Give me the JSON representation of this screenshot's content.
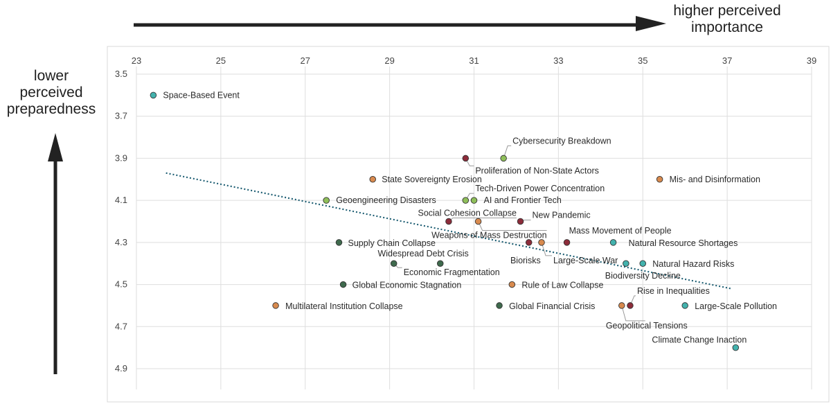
{
  "chart_data": {
    "type": "scatter",
    "title": "",
    "x_annotation": [
      "higher perceived",
      "importance"
    ],
    "y_annotation": [
      "lower",
      "perceived",
      "preparedness"
    ],
    "xlim": [
      23,
      39
    ],
    "ylim": [
      3.5,
      4.9
    ],
    "y_inverted": true,
    "x_ticks": [
      23,
      25,
      27,
      29,
      31,
      33,
      35,
      37,
      39
    ],
    "y_ticks": [
      3.5,
      3.7,
      3.9,
      4.1,
      4.3,
      4.5,
      4.7,
      4.9
    ],
    "grid": true,
    "trendline": {
      "style": "dotted",
      "x": [
        23.7,
        37.1
      ],
      "y": [
        3.97,
        4.52
      ]
    },
    "colors": {
      "teal": "#43b2ad",
      "lightgreen": "#8fbf5a",
      "darkgreen": "#3f6a4d",
      "orange": "#d88a4e",
      "maroon": "#8c2c3a",
      "trend": "#1f5f74"
    },
    "points": [
      {
        "label": "Space-Based Event",
        "x": 23.4,
        "y": 3.6,
        "color": "teal"
      },
      {
        "label": "Cybersecurity Breakdown",
        "x": 31.7,
        "y": 3.9,
        "color": "lightgreen"
      },
      {
        "label": "Proliferation of Non-State Actors",
        "x": 30.8,
        "y": 3.9,
        "color": "maroon"
      },
      {
        "label": "State Sovereignty Erosion",
        "x": 28.6,
        "y": 4.0,
        "color": "orange"
      },
      {
        "label": "Mis- and Disinformation",
        "x": 35.4,
        "y": 4.0,
        "color": "orange"
      },
      {
        "label": "Geoengineering Disasters",
        "x": 27.5,
        "y": 4.1,
        "color": "lightgreen"
      },
      {
        "label": "Tech-Driven Power Concentration",
        "x": 30.8,
        "y": 4.1,
        "color": "lightgreen"
      },
      {
        "label": "AI and Frontier Tech",
        "x": 31.0,
        "y": 4.1,
        "color": "lightgreen"
      },
      {
        "label": "Social Cohesion Collapse",
        "x": 30.4,
        "y": 4.2,
        "color": "maroon"
      },
      {
        "label": "Weapons of Mass Destruction",
        "x": 31.1,
        "y": 4.2,
        "color": "orange"
      },
      {
        "label": "New Pandemic",
        "x": 32.1,
        "y": 4.2,
        "color": "maroon"
      },
      {
        "label": "Mass Movement of People",
        "x": 33.2,
        "y": 4.3,
        "color": "maroon"
      },
      {
        "label": "Supply Chain Collapse",
        "x": 27.8,
        "y": 4.3,
        "color": "darkgreen"
      },
      {
        "label": "Natural Resource Shortages",
        "x": 34.3,
        "y": 4.3,
        "color": "teal"
      },
      {
        "label": "Biorisks",
        "x": 32.3,
        "y": 4.3,
        "color": "maroon"
      },
      {
        "label": "Large-Scale War",
        "x": 32.6,
        "y": 4.3,
        "color": "orange"
      },
      {
        "label": "Widespread Debt Crisis",
        "x": 30.2,
        "y": 4.4,
        "color": "darkgreen"
      },
      {
        "label": "Economic Fragmentation",
        "x": 29.1,
        "y": 4.4,
        "color": "darkgreen"
      },
      {
        "label": "Biodiversity Decline",
        "x": 34.6,
        "y": 4.4,
        "color": "teal"
      },
      {
        "label": "Natural Hazard Risks",
        "x": 35.0,
        "y": 4.4,
        "color": "teal"
      },
      {
        "label": "Global Economic Stagnation",
        "x": 27.9,
        "y": 4.5,
        "color": "darkgreen"
      },
      {
        "label": "Rule of Law Collapse",
        "x": 31.9,
        "y": 4.5,
        "color": "orange"
      },
      {
        "label": "Multilateral Institution Collapse",
        "x": 26.3,
        "y": 4.6,
        "color": "orange"
      },
      {
        "label": "Global Financial Crisis",
        "x": 31.6,
        "y": 4.6,
        "color": "darkgreen"
      },
      {
        "label": "Rise in Inequalities",
        "x": 34.7,
        "y": 4.6,
        "color": "maroon"
      },
      {
        "label": "Geopolitical Tensions",
        "x": 34.5,
        "y": 4.6,
        "color": "orange"
      },
      {
        "label": "Large-Scale Pollution",
        "x": 36.0,
        "y": 4.6,
        "color": "teal"
      },
      {
        "label": "Climate Change Inaction",
        "x": 37.2,
        "y": 4.8,
        "color": "teal"
      }
    ]
  }
}
